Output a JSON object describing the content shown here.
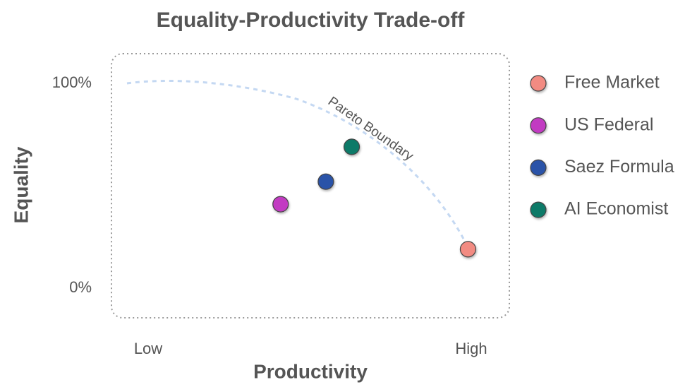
{
  "chart_data": {
    "type": "scatter",
    "title": "Equality-Productivity Trade-off",
    "xlabel": "Productivity",
    "ylabel": "Equality",
    "xlim": [
      0,
      100
    ],
    "ylim": [
      0,
      100
    ],
    "xticks": [
      {
        "value": 0,
        "label": "Low"
      },
      {
        "value": 100,
        "label": "High"
      }
    ],
    "yticks": [
      {
        "value": 0,
        "label": "0%"
      },
      {
        "value": 100,
        "label": "100%"
      }
    ],
    "annotation": "Pareto Boundary",
    "legend": "right",
    "series": [
      {
        "name": "Free Market",
        "color": "#f28b82",
        "x": [
          99
        ],
        "values": [
          19
        ]
      },
      {
        "name": "US Federal",
        "color": "#c23bc2",
        "x": [
          41
        ],
        "values": [
          41
        ]
      },
      {
        "name": "Saez Formula",
        "color": "#2b52a8",
        "x": [
          55
        ],
        "values": [
          52
        ]
      },
      {
        "name": "AI Economist",
        "color": "#0f7a68",
        "x": [
          63
        ],
        "values": [
          69
        ]
      }
    ]
  }
}
